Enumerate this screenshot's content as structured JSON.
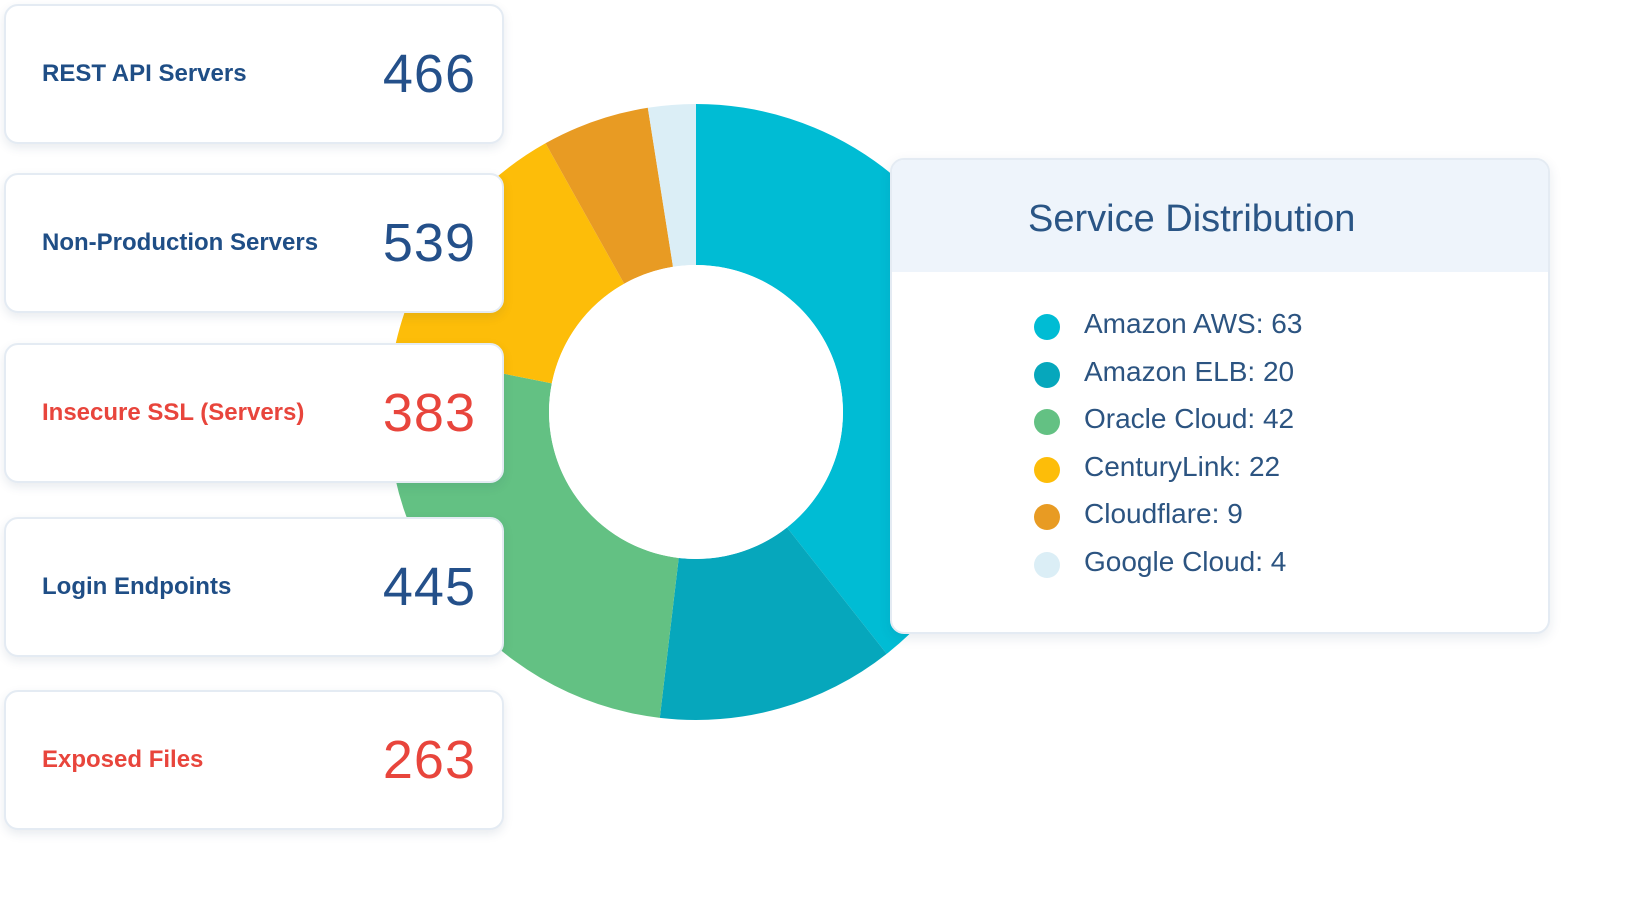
{
  "cards": [
    {
      "label": "REST API Servers",
      "value": "466",
      "alert": false
    },
    {
      "label": "Non-Production Servers",
      "value": "539",
      "alert": false
    },
    {
      "label": "Insecure SSL (Servers)",
      "value": "383",
      "alert": true
    },
    {
      "label": "Login Endpoints",
      "value": "445",
      "alert": false
    },
    {
      "label": "Exposed Files",
      "value": "263",
      "alert": true
    }
  ],
  "legend": {
    "title": "Service Distribution"
  },
  "chart_data": {
    "type": "pie",
    "title": "Service Distribution",
    "series": [
      {
        "name": "Amazon AWS",
        "value": 63,
        "color": "#00bcd4"
      },
      {
        "name": "Amazon ELB",
        "value": 20,
        "color": "#06a7bc"
      },
      {
        "name": "Oracle Cloud",
        "value": 42,
        "color": "#63c183"
      },
      {
        "name": "CenturyLink",
        "value": 22,
        "color": "#fdbd09"
      },
      {
        "name": "Cloudflare",
        "value": 9,
        "color": "#e89b23"
      },
      {
        "name": "Google Cloud",
        "value": 4,
        "color": "#dbeef6"
      }
    ],
    "legend_position": "right"
  }
}
